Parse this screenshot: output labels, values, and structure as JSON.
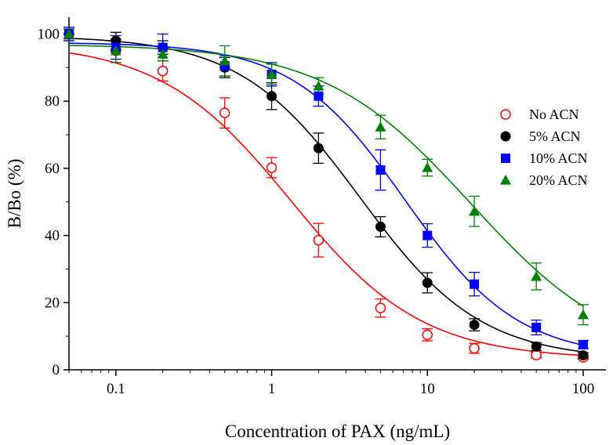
{
  "chart_data": {
    "type": "scatter",
    "xlabel": "Concentration of PAX (ng/mL)",
    "ylabel": "B/Bo (%)",
    "xscale": "log",
    "xlim": [
      0.05,
      140
    ],
    "ylim": [
      0,
      105
    ],
    "xticks": [
      0.1,
      1,
      10,
      100
    ],
    "xtick_labels": [
      "0.1",
      "1",
      "10",
      "100"
    ],
    "yticks": [
      0,
      20,
      40,
      60,
      80,
      100
    ],
    "ytick_labels": [
      "0",
      "20",
      "40",
      "60",
      "80",
      "100"
    ],
    "grid": false,
    "legend_position": "right",
    "series": [
      {
        "name": "No ACN",
        "color": "#ff0000",
        "marker": "open-circle",
        "x": [
          0.05,
          0.1,
          0.2,
          0.5,
          1,
          2,
          5,
          10,
          20,
          50,
          100
        ],
        "y": [
          100.0,
          95.0,
          89.0,
          76.5,
          60.2,
          38.6,
          18.4,
          10.4,
          6.4,
          4.4,
          3.7
        ],
        "err": [
          2.0,
          3.5,
          3.0,
          4.5,
          3.0,
          5.0,
          2.7,
          1.8,
          1.5,
          0.8,
          0.6
        ],
        "fit": {
          "top": 97.5,
          "bottom": 3.2,
          "ic50": 1.33,
          "hill": 1.03
        }
      },
      {
        "name": "5% ACN",
        "color": "#000000",
        "marker": "filled-circle",
        "x": [
          0.05,
          0.1,
          0.2,
          0.5,
          1,
          2,
          5,
          10,
          20,
          50,
          100
        ],
        "y": [
          100.0,
          98.0,
          96.0,
          90.0,
          81.5,
          66.0,
          42.6,
          25.9,
          13.4,
          6.9,
          4.3
        ],
        "err": [
          1.5,
          2.5,
          2.0,
          3.0,
          4.0,
          4.5,
          3.0,
          3.0,
          1.8,
          1.2,
          0.8
        ],
        "fit": {
          "top": 99.5,
          "bottom": 3.0,
          "ic50": 3.7,
          "hill": 1.12
        }
      },
      {
        "name": "10% ACN",
        "color": "#0000ff",
        "marker": "filled-square",
        "x": [
          0.05,
          0.1,
          0.2,
          0.5,
          1,
          2,
          5,
          10,
          20,
          50,
          100
        ],
        "y": [
          100.0,
          96.0,
          96.0,
          90.5,
          88.0,
          81.5,
          59.5,
          40.0,
          25.5,
          12.6,
          7.5
        ],
        "err": [
          2.0,
          3.5,
          4.0,
          3.0,
          3.5,
          3.0,
          6.0,
          3.5,
          3.5,
          2.2,
          1.2
        ],
        "fit": {
          "top": 97.5,
          "bottom": 3.5,
          "ic50": 7.2,
          "hill": 1.2
        }
      },
      {
        "name": "20% ACN",
        "color": "#008000",
        "marker": "filled-triangle",
        "x": [
          0.05,
          0.1,
          0.2,
          0.5,
          1,
          2,
          5,
          10,
          20,
          50,
          100
        ],
        "y": [
          100.0,
          95.0,
          94.0,
          92.0,
          88.0,
          84.5,
          72.3,
          60.2,
          47.2,
          27.8,
          16.4
        ],
        "err": [
          1.5,
          3.5,
          2.0,
          4.5,
          3.0,
          2.5,
          3.5,
          2.5,
          4.5,
          4.0,
          3.0
        ],
        "fit": {
          "top": 97.0,
          "bottom": 2.0,
          "ic50": 19.0,
          "hill": 0.92
        }
      }
    ]
  }
}
